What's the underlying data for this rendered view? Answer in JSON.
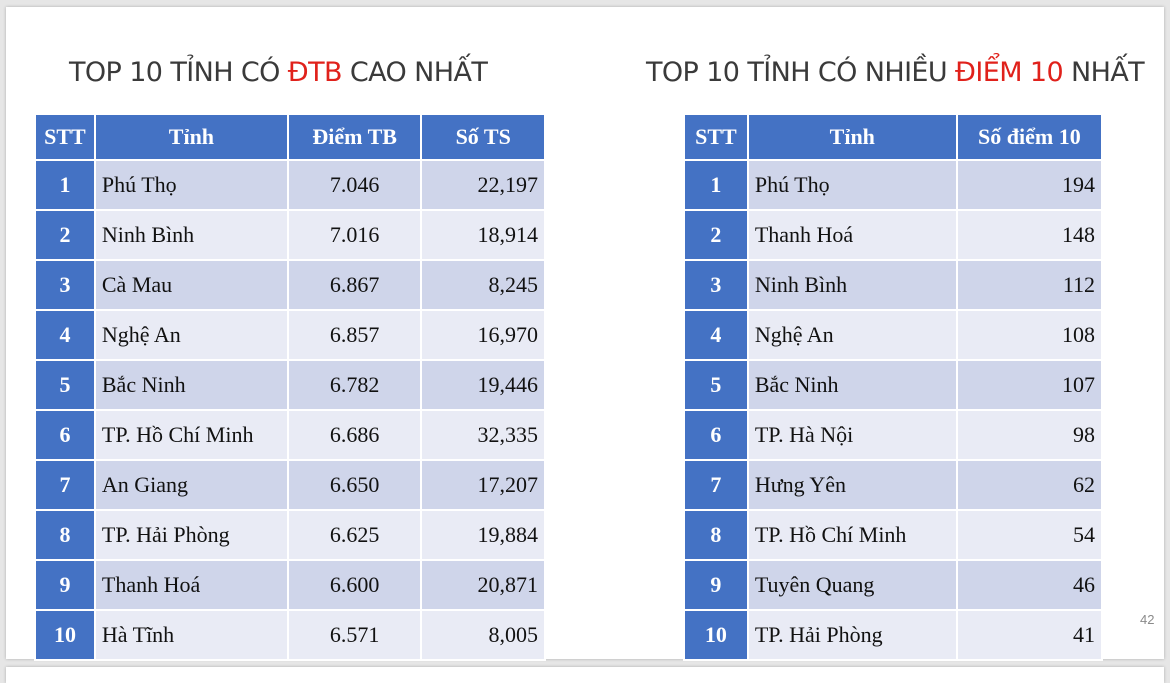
{
  "left": {
    "title_prefix": "TOP 10 TỈNH CÓ ",
    "title_highlight": "ĐTB",
    "title_suffix": " CAO NHẤT",
    "headers": [
      "STT",
      "Tỉnh",
      "Điểm TB",
      "Số TS"
    ],
    "rows": [
      {
        "stt": "1",
        "province": "Phú Thọ",
        "avg": "7.046",
        "count": "22,197"
      },
      {
        "stt": "2",
        "province": "Ninh Bình",
        "avg": "7.016",
        "count": "18,914"
      },
      {
        "stt": "3",
        "province": "Cà Mau",
        "avg": "6.867",
        "count": "8,245"
      },
      {
        "stt": "4",
        "province": "Nghệ An",
        "avg": "6.857",
        "count": "16,970"
      },
      {
        "stt": "5",
        "province": "Bắc Ninh",
        "avg": "6.782",
        "count": "19,446"
      },
      {
        "stt": "6",
        "province": "TP. Hồ Chí Minh",
        "avg": "6.686",
        "count": "32,335"
      },
      {
        "stt": "7",
        "province": "An Giang",
        "avg": "6.650",
        "count": "17,207"
      },
      {
        "stt": "8",
        "province": "TP. Hải Phòng",
        "avg": "6.625",
        "count": "19,884"
      },
      {
        "stt": "9",
        "province": "Thanh Hoá",
        "avg": "6.600",
        "count": "20,871"
      },
      {
        "stt": "10",
        "province": "Hà Tĩnh",
        "avg": "6.571",
        "count": "8,005"
      }
    ]
  },
  "right": {
    "title_prefix": "TOP 10 TỈNH CÓ NHIỀU ",
    "title_highlight": "ĐIỂM 10",
    "title_suffix": " NHẤT",
    "headers": [
      "STT",
      "Tỉnh",
      "Số điểm 10"
    ],
    "rows": [
      {
        "stt": "1",
        "province": "Phú Thọ",
        "tens": "194"
      },
      {
        "stt": "2",
        "province": "Thanh Hoá",
        "tens": "148"
      },
      {
        "stt": "3",
        "province": "Ninh Bình",
        "tens": "112"
      },
      {
        "stt": "4",
        "province": "Nghệ An",
        "tens": "108"
      },
      {
        "stt": "5",
        "province": "Bắc Ninh",
        "tens": "107"
      },
      {
        "stt": "6",
        "province": "TP. Hà Nội",
        "tens": "98"
      },
      {
        "stt": "7",
        "province": "Hưng Yên",
        "tens": "62"
      },
      {
        "stt": "8",
        "province": "TP. Hồ Chí Minh",
        "tens": "54"
      },
      {
        "stt": "9",
        "province": "Tuyên Quang",
        "tens": "46"
      },
      {
        "stt": "10",
        "province": "TP. Hải Phòng",
        "tens": "41"
      }
    ]
  },
  "page_number": "42",
  "colors": {
    "header_bg": "#4472c4",
    "row_odd": "#cfd5ea",
    "row_even": "#e9ebf5",
    "highlight": "#e0211b"
  }
}
